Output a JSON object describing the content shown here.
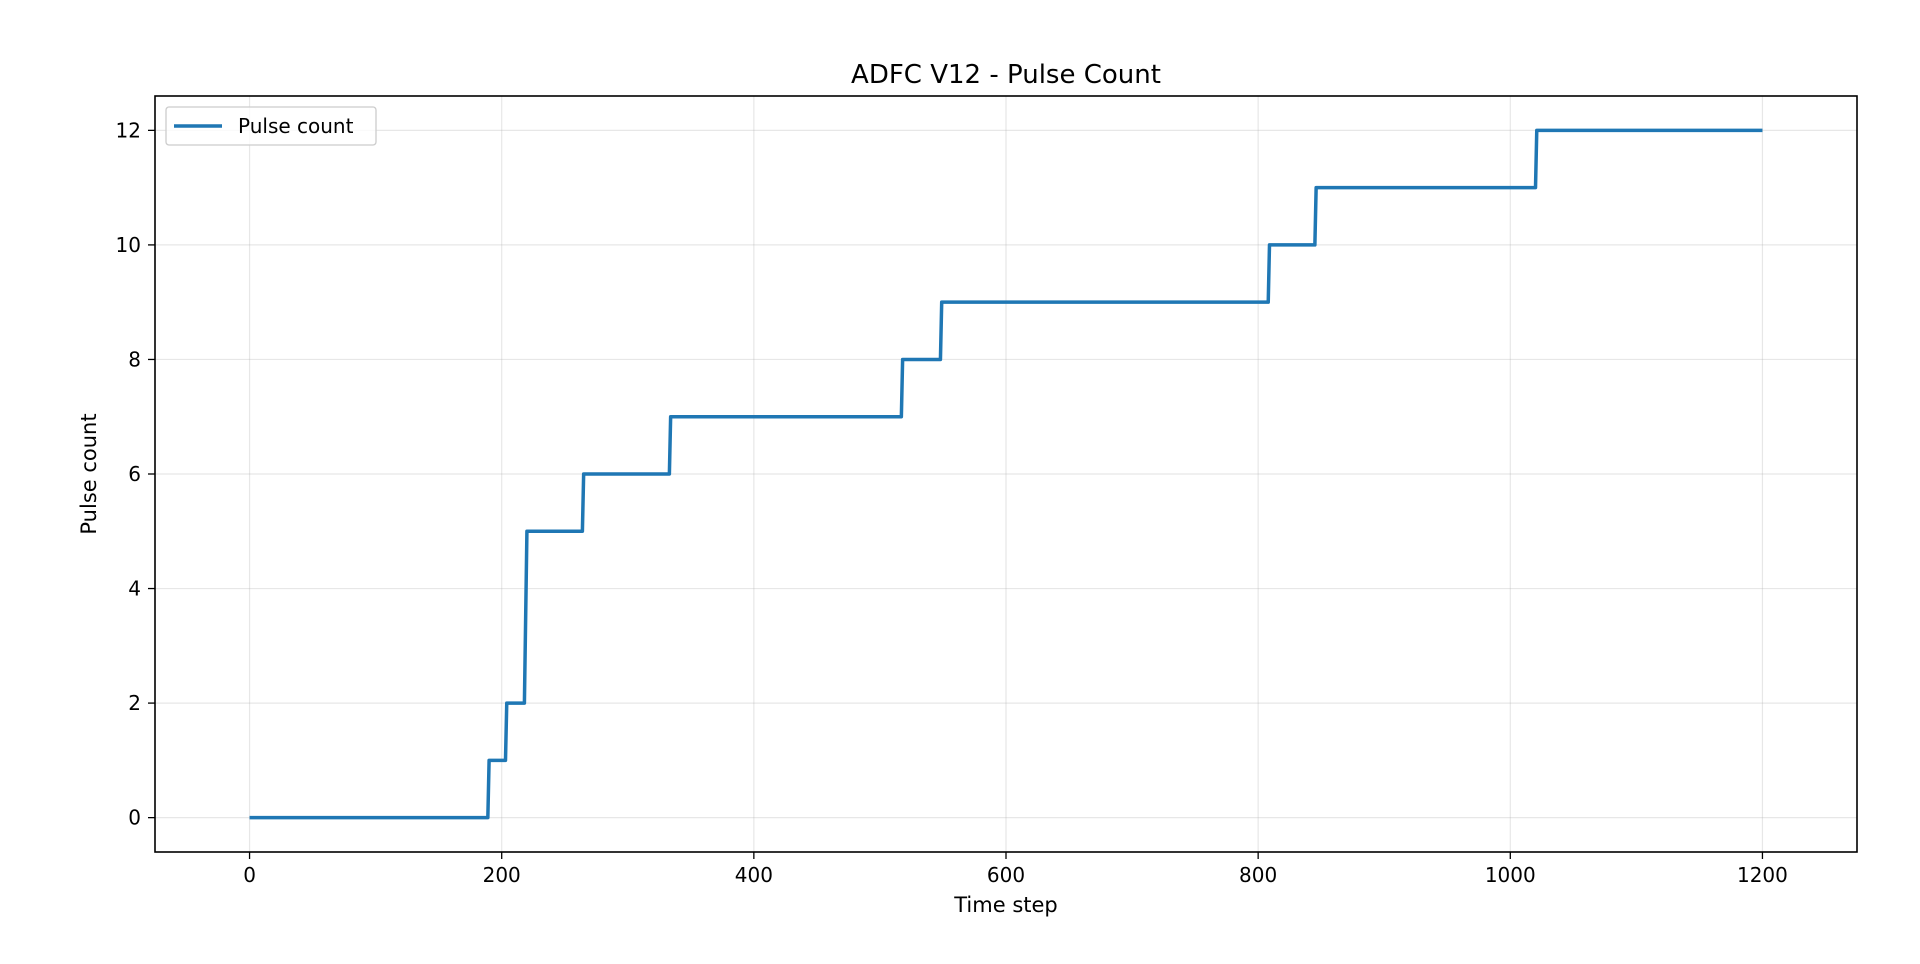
{
  "chart_data": {
    "type": "line",
    "title": "ADFC V12 - Pulse Count",
    "xlabel": "Time step",
    "ylabel": "Pulse count",
    "xlim": [
      -75,
      1275
    ],
    "ylim": [
      -0.6,
      12.6
    ],
    "xticks": [
      0,
      200,
      400,
      600,
      800,
      1000,
      1200
    ],
    "yticks": [
      0,
      2,
      4,
      6,
      8,
      10,
      12
    ],
    "grid": true,
    "legend_position": "top-left",
    "line_style": "step",
    "series": [
      {
        "name": "Pulse count",
        "color": "#1f77b4",
        "x": [
          0,
          189,
          190,
          203,
          204,
          218,
          220,
          264,
          265,
          333,
          334,
          517,
          518,
          548,
          549,
          808,
          809,
          845,
          846,
          1020,
          1021,
          1200
        ],
        "y": [
          0,
          0,
          1,
          1,
          2,
          2,
          5,
          5,
          6,
          6,
          7,
          7,
          8,
          8,
          9,
          9,
          10,
          10,
          11,
          11,
          12,
          12
        ]
      }
    ]
  }
}
